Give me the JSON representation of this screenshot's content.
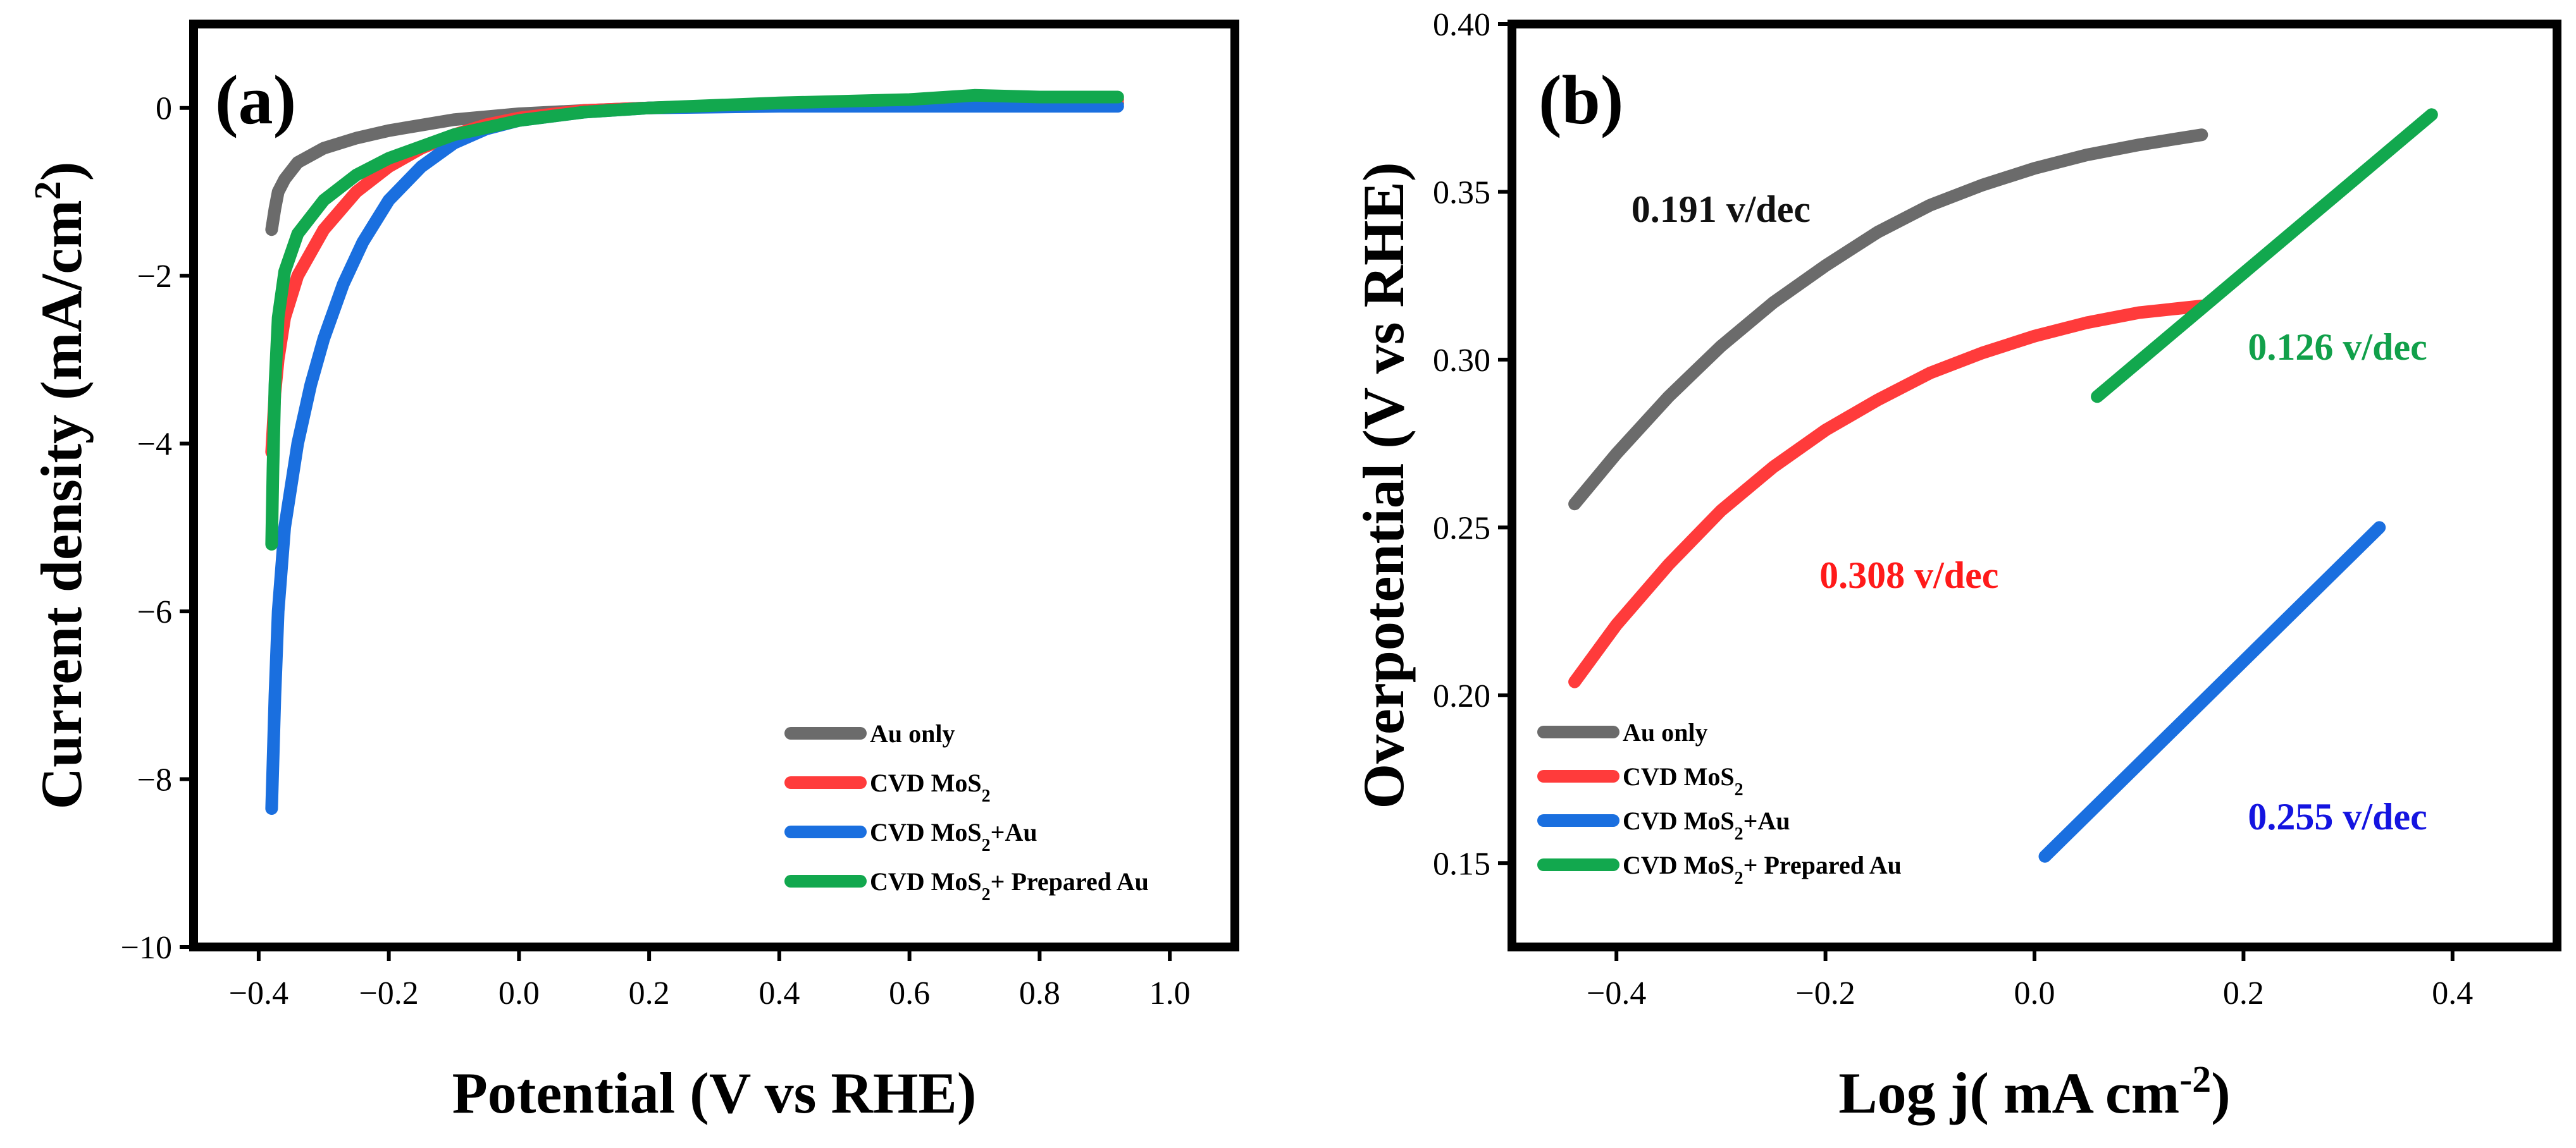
{
  "chart_data": [
    {
      "type": "line",
      "panel_label": "(a)",
      "xlabel": "Potential (V vs RHE)",
      "ylabel": "Current density (mA/cm2)",
      "xlim": [
        -0.5,
        1.1
      ],
      "ylim": [
        -10,
        1
      ],
      "xticks": [
        -0.4,
        -0.2,
        0.0,
        0.2,
        0.4,
        0.6,
        0.8,
        1.0
      ],
      "xtick_labels": [
        "−0.4",
        "−0.2",
        "0.0",
        "0.2",
        "0.4",
        "0.6",
        "0.8",
        "1.0"
      ],
      "yticks": [
        0,
        -2,
        -4,
        -6,
        -8,
        -10
      ],
      "ytick_labels": [
        "0",
        "−2",
        "−4",
        "−6",
        "−8",
        "−10"
      ],
      "legend_position": "bottom-right",
      "series": [
        {
          "name": "Au only",
          "color": "#6b6b6b",
          "x": [
            -0.38,
            -0.375,
            -0.37,
            -0.36,
            -0.34,
            -0.3,
            -0.25,
            -0.2,
            -0.1,
            0.0,
            0.1,
            0.2,
            0.4,
            0.6,
            0.8,
            0.92
          ],
          "y": [
            -1.45,
            -1.2,
            -1.0,
            -0.85,
            -0.65,
            -0.48,
            -0.36,
            -0.27,
            -0.14,
            -0.07,
            -0.03,
            0.0,
            0.03,
            0.05,
            0.05,
            0.05
          ]
        },
        {
          "name": "CVD MoS2",
          "color": "#ff3b3b",
          "x": [
            -0.38,
            -0.375,
            -0.37,
            -0.36,
            -0.34,
            -0.3,
            -0.25,
            -0.2,
            -0.15,
            -0.1,
            -0.05,
            0.0,
            0.1,
            0.2,
            0.4,
            0.6,
            0.8,
            0.92
          ],
          "y": [
            -4.1,
            -3.4,
            -3.0,
            -2.5,
            -2.0,
            -1.45,
            -1.0,
            -0.7,
            -0.48,
            -0.32,
            -0.2,
            -0.12,
            -0.03,
            0.0,
            0.05,
            0.08,
            0.1,
            0.1
          ]
        },
        {
          "name": "CVD MoS2+Au",
          "color": "#1a6fdf",
          "x": [
            -0.38,
            -0.375,
            -0.37,
            -0.36,
            -0.34,
            -0.32,
            -0.3,
            -0.27,
            -0.24,
            -0.2,
            -0.15,
            -0.1,
            -0.05,
            0.0,
            0.1,
            0.2,
            0.4,
            0.6,
            0.8,
            0.92
          ],
          "y": [
            -8.35,
            -7.0,
            -6.0,
            -5.0,
            -4.0,
            -3.3,
            -2.75,
            -2.1,
            -1.6,
            -1.1,
            -0.7,
            -0.42,
            -0.25,
            -0.15,
            -0.05,
            0.0,
            0.02,
            0.02,
            0.02,
            0.02
          ]
        },
        {
          "name": "CVD MoS2+ Prepared Au",
          "color": "#12a84e",
          "x": [
            -0.38,
            -0.378,
            -0.375,
            -0.37,
            -0.36,
            -0.34,
            -0.3,
            -0.25,
            -0.2,
            -0.1,
            0.0,
            0.1,
            0.2,
            0.4,
            0.6,
            0.7,
            0.8,
            0.92
          ],
          "y": [
            -5.2,
            -4.3,
            -3.3,
            -2.5,
            -1.95,
            -1.5,
            -1.1,
            -0.8,
            -0.6,
            -0.32,
            -0.15,
            -0.05,
            0.0,
            0.06,
            0.1,
            0.15,
            0.13,
            0.13
          ]
        }
      ]
    },
    {
      "type": "line",
      "panel_label": "(b)",
      "xlabel": "Log j( mA cm-2)",
      "ylabel": "Overpotential (V vs RHE)",
      "xlim": [
        -0.5,
        0.5
      ],
      "ylim": [
        0.125,
        0.4
      ],
      "xticks": [
        -0.4,
        -0.2,
        0.0,
        0.2,
        0.4
      ],
      "xtick_labels": [
        "−0.4",
        "−0.2",
        "0.0",
        "0.2",
        "0.4"
      ],
      "yticks": [
        0.15,
        0.2,
        0.25,
        0.3,
        0.35,
        0.4
      ],
      "ytick_labels": [
        "0.15",
        "0.20",
        "0.25",
        "0.30",
        "0.35",
        "0.40"
      ],
      "legend_position": "bottom-left",
      "series": [
        {
          "name": "Au only",
          "color": "#6b6b6b",
          "x": [
            -0.44,
            -0.4,
            -0.35,
            -0.3,
            -0.25,
            -0.2,
            -0.15,
            -0.1,
            -0.05,
            0.0,
            0.05,
            0.1,
            0.16
          ],
          "y": [
            0.257,
            0.272,
            0.289,
            0.304,
            0.317,
            0.328,
            0.338,
            0.346,
            0.352,
            0.357,
            0.361,
            0.364,
            0.367
          ]
        },
        {
          "name": "CVD MoS2",
          "color": "#ff3b3b",
          "x": [
            -0.44,
            -0.4,
            -0.35,
            -0.3,
            -0.25,
            -0.2,
            -0.15,
            -0.1,
            -0.05,
            0.0,
            0.05,
            0.1,
            0.16
          ],
          "y": [
            0.204,
            0.221,
            0.239,
            0.255,
            0.268,
            0.279,
            0.288,
            0.296,
            0.302,
            0.307,
            0.311,
            0.314,
            0.316
          ]
        },
        {
          "name": "CVD MoS2+Au",
          "color": "#1a6fdf",
          "x": [
            0.01,
            0.33
          ],
          "y": [
            0.152,
            0.25
          ]
        },
        {
          "name": "CVD MoS2+ Prepared Au",
          "color": "#12a84e",
          "x": [
            0.06,
            0.38
          ],
          "y": [
            0.289,
            0.373
          ]
        }
      ],
      "annotations": [
        {
          "text": "0.191 v/dec",
          "color": "#111111",
          "x": -0.3,
          "y": 0.341
        },
        {
          "text": "0.308 v/dec",
          "color": "#ff1a1a",
          "x": -0.12,
          "y": 0.232
        },
        {
          "text": "0.126 v/dec",
          "color": "#11a04a",
          "x": 0.29,
          "y": 0.3
        },
        {
          "text": "0.255 v/dec",
          "color": "#1414e0",
          "x": 0.29,
          "y": 0.16
        }
      ]
    }
  ]
}
